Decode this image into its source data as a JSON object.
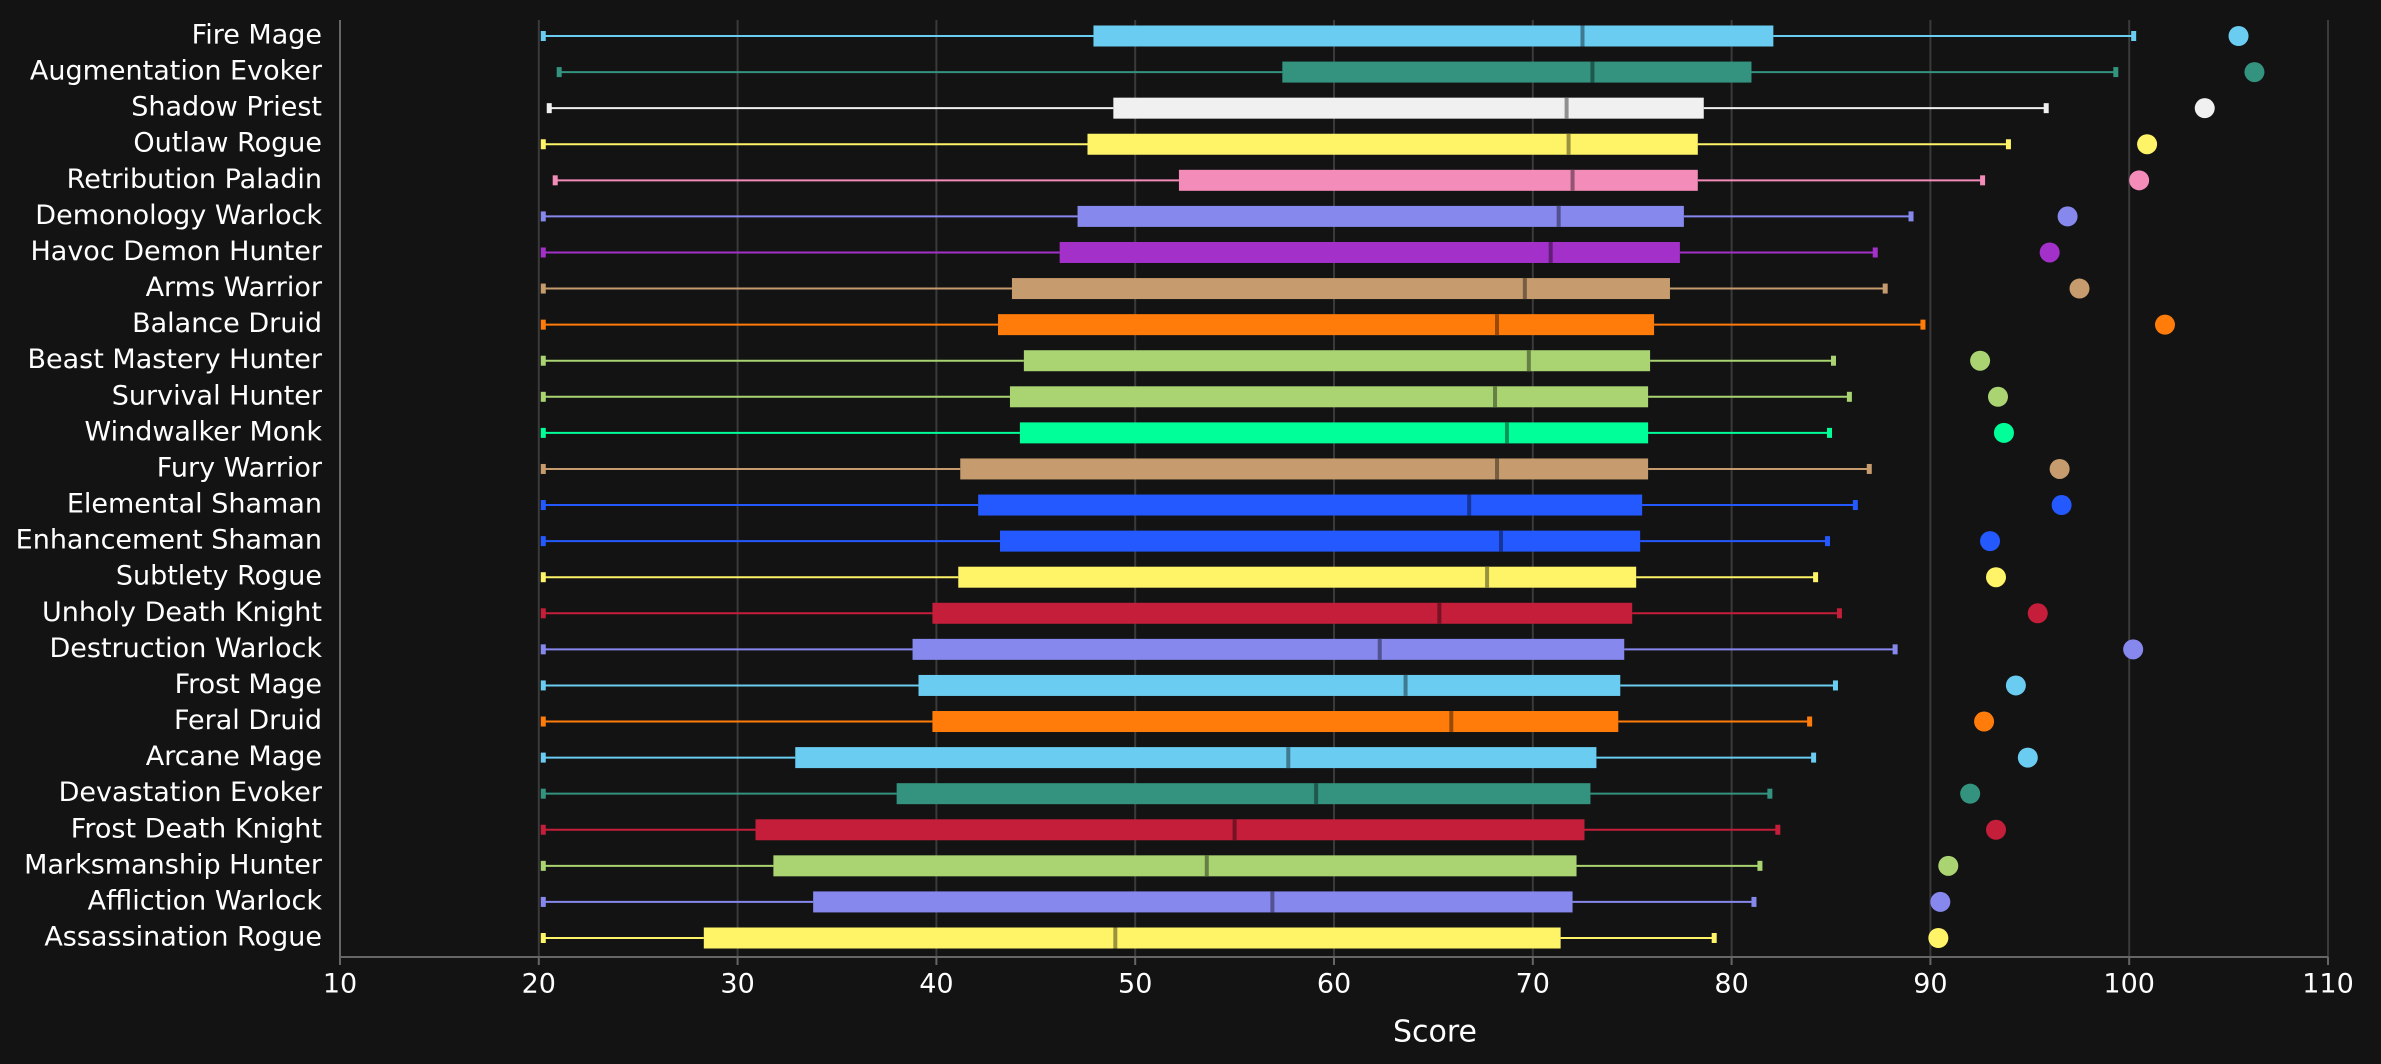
{
  "chart_data": {
    "type": "boxplot",
    "orientation": "horizontal",
    "xlabel": "Score",
    "xlim": [
      10,
      110
    ],
    "xticks": [
      10,
      20,
      30,
      40,
      50,
      60,
      70,
      80,
      90,
      100,
      110
    ],
    "grid": true,
    "categories": [
      "Fire Mage",
      "Augmentation Evoker",
      "Shadow Priest",
      "Outlaw Rogue",
      "Retribution Paladin",
      "Demonology Warlock",
      "Havoc Demon Hunter",
      "Arms Warrior",
      "Balance Druid",
      "Beast Mastery Hunter",
      "Survival Hunter",
      "Windwalker Monk",
      "Fury Warrior",
      "Elemental Shaman",
      "Enhancement Shaman",
      "Subtlety Rogue",
      "Unholy Death Knight",
      "Destruction Warlock",
      "Frost Mage",
      "Feral Druid",
      "Arcane Mage",
      "Devastation Evoker",
      "Frost Death Knight",
      "Marksmanship Hunter",
      "Affliction Warlock",
      "Assassination Rogue"
    ],
    "colors": [
      "#69ccf0",
      "#33937f",
      "#f0f0f0",
      "#fff468",
      "#f48cba",
      "#8788ee",
      "#a330c9",
      "#c69b6d",
      "#ff7c0a",
      "#aad372",
      "#aad372",
      "#00ff98",
      "#c69b6d",
      "#2459ff",
      "#2459ff",
      "#fff468",
      "#c41e3a",
      "#8788ee",
      "#69ccf0",
      "#ff7c0a",
      "#69ccf0",
      "#33937f",
      "#c41e3a",
      "#aad372",
      "#8788ee",
      "#fff468"
    ],
    "min": [
      20.2,
      21.0,
      20.5,
      20.2,
      20.8,
      20.2,
      20.2,
      20.2,
      20.2,
      20.2,
      20.2,
      20.2,
      20.2,
      20.2,
      20.2,
      20.2,
      20.2,
      20.2,
      20.2,
      20.2,
      20.2,
      20.2,
      20.2,
      20.2,
      20.2,
      20.2
    ],
    "q1": [
      47.9,
      57.4,
      48.9,
      47.6,
      52.2,
      47.1,
      46.2,
      43.8,
      43.1,
      44.4,
      43.7,
      44.2,
      41.2,
      42.1,
      43.2,
      41.1,
      39.8,
      38.8,
      39.1,
      39.8,
      32.9,
      38.0,
      30.9,
      31.8,
      33.8,
      28.3
    ],
    "median": [
      72.5,
      73.0,
      71.7,
      71.8,
      72.0,
      71.3,
      70.9,
      69.6,
      68.2,
      69.8,
      68.1,
      68.7,
      68.2,
      66.8,
      68.4,
      67.7,
      65.3,
      62.3,
      63.6,
      65.9,
      57.7,
      59.1,
      55.0,
      53.6,
      56.9,
      49.0
    ],
    "q3": [
      82.1,
      81.0,
      78.6,
      78.3,
      78.3,
      77.6,
      77.4,
      76.9,
      76.1,
      75.9,
      75.8,
      75.8,
      75.8,
      75.5,
      75.4,
      75.2,
      75.0,
      74.6,
      74.4,
      74.3,
      73.2,
      72.9,
      72.6,
      72.2,
      72.0,
      71.4
    ],
    "max": [
      100.2,
      99.3,
      95.8,
      93.9,
      92.6,
      89.0,
      87.2,
      87.7,
      89.6,
      85.1,
      85.9,
      84.9,
      86.9,
      86.2,
      84.8,
      84.2,
      85.4,
      88.2,
      85.2,
      83.9,
      84.1,
      81.9,
      82.3,
      81.4,
      81.1,
      79.1
    ],
    "best": [
      105.5,
      106.3,
      103.8,
      100.9,
      100.5,
      96.9,
      96.0,
      97.5,
      101.8,
      92.5,
      93.4,
      93.7,
      96.5,
      96.6,
      93.0,
      93.3,
      95.4,
      100.2,
      94.3,
      92.7,
      94.9,
      92.0,
      93.3,
      90.9,
      90.5,
      90.4
    ]
  }
}
